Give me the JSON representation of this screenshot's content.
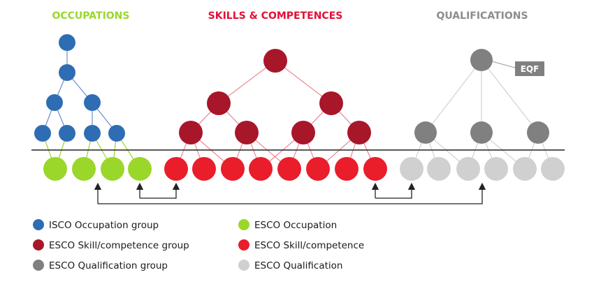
{
  "headings": {
    "occupations": "OCCUPATIONS",
    "skills": "SKILLS & COMPETENCES",
    "qualifications": "QUALIFICATIONS"
  },
  "eqf_label": "EQF",
  "legend": [
    {
      "label": "ISCO Occupation group",
      "color": "#2e6db4"
    },
    {
      "label": "ESCO Occupation",
      "color": "#9ad72a"
    },
    {
      "label": "ESCO Skill/competence group",
      "color": "#a8162a"
    },
    {
      "label": "ESCO Skill/competence",
      "color": "#ea1d2b"
    },
    {
      "label": "ESCO Qualification group",
      "color": "#808080"
    },
    {
      "label": "ESCO Qualification",
      "color": "#d0d0d0"
    }
  ],
  "colors": {
    "isco_group": "#2e6db4",
    "occupation": "#9ad72a",
    "skill_group": "#a8162a",
    "skill": "#ea1d2b",
    "qual_group": "#808080",
    "qualification": "#d0d0d0",
    "occupation_heading": "#9ad72a",
    "skills_heading": "#e30f35",
    "qualifications_heading": "#8c8c8c",
    "blue_link": "#6a8fc8",
    "green_link": "#9ad72a",
    "red_link": "#e8707f",
    "grey_link": "#c8c8c8"
  }
}
